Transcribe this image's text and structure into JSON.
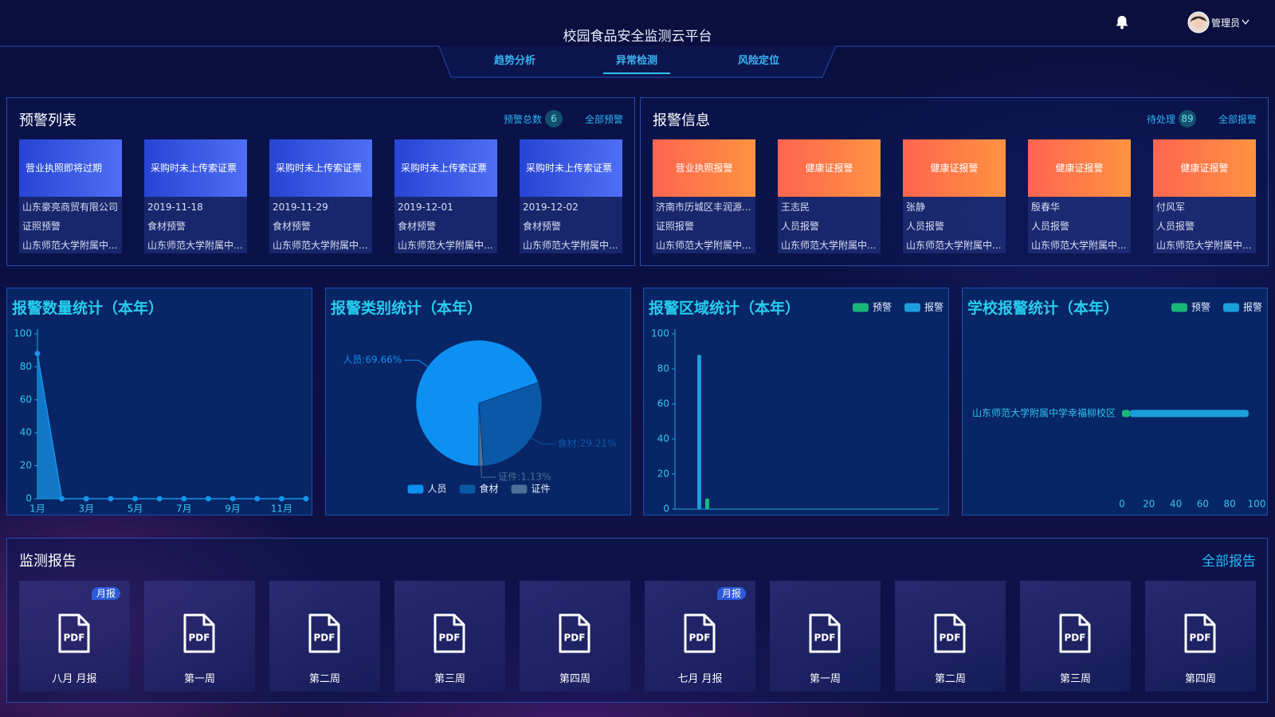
{
  "header": {
    "title": "校园食品安全监测云平台",
    "tabs": [
      "趋势分析",
      "异常检测",
      "风险定位"
    ],
    "active_tab": 1,
    "user": "管理员"
  },
  "warning_list": {
    "title": "预警列表",
    "total_label": "预警总数",
    "total": 6,
    "link": "全部预警",
    "cards": [
      {
        "head": "营业执照即将过期",
        "lines": [
          "山东豪亮商贸有限公司",
          "证照预警",
          "山东师范大学附属中..."
        ]
      },
      {
        "head": "采购时未上传索证票",
        "lines": [
          "2019-11-18",
          "食材预警",
          "山东师范大学附属中..."
        ]
      },
      {
        "head": "采购时未上传索证票",
        "lines": [
          "2019-11-29",
          "食材预警",
          "山东师范大学附属中..."
        ]
      },
      {
        "head": "采购时未上传索证票",
        "lines": [
          "2019-12-01",
          "食材预警",
          "山东师范大学附属中..."
        ]
      },
      {
        "head": "采购时未上传索证票",
        "lines": [
          "2019-12-02",
          "食材预警",
          "山东师范大学附属中..."
        ]
      }
    ]
  },
  "alarm_info": {
    "title": "报警信息",
    "pending_label": "待处理",
    "pending": 89,
    "link": "全部报警",
    "cards": [
      {
        "head": "营业执照报警",
        "lines": [
          "济南市历城区丰润源...",
          "证照报警",
          "山东师范大学附属中..."
        ]
      },
      {
        "head": "健康证报警",
        "lines": [
          "王志民",
          "人员报警",
          "山东师范大学附属中..."
        ]
      },
      {
        "head": "健康证报警",
        "lines": [
          "张静",
          "人员报警",
          "山东师范大学附属中..."
        ]
      },
      {
        "head": "健康证报警",
        "lines": [
          "殷春华",
          "人员报警",
          "山东师范大学附属中..."
        ]
      },
      {
        "head": "健康证报警",
        "lines": [
          "付风军",
          "人员报警",
          "山东师范大学附属中..."
        ]
      }
    ]
  },
  "chart_data": [
    {
      "type": "line",
      "title": "报警数量统计（本年）",
      "categories": [
        "1月",
        null,
        "3月",
        null,
        "5月",
        null,
        "7月",
        null,
        "9月",
        null,
        "11月",
        null
      ],
      "values": [
        88,
        0,
        0,
        0,
        0,
        0,
        0,
        0,
        0,
        0,
        0,
        0
      ],
      "color": "#1593e8",
      "ylim": [
        0,
        100
      ],
      "yticks": [
        0,
        20,
        40,
        60,
        80,
        100
      ],
      "area": true
    },
    {
      "type": "pie",
      "title": "报警类别统计（本年）",
      "categories": [
        "人员",
        "食材",
        "证件"
      ],
      "values": [
        69.66,
        29.21,
        1.13
      ],
      "value_labels": [
        "人员:69.66%",
        "食材:29.21%",
        "证件:1.13%"
      ],
      "colors": [
        "#0e8ff2",
        "#0a58a6",
        "#4e6f98"
      ],
      "legend": "bottom"
    },
    {
      "type": "bar",
      "title": "报警区域统计（本年）",
      "categories": [
        null
      ],
      "series": [
        {
          "name": "预警",
          "color": "#18b87a",
          "values": [
            6
          ]
        },
        {
          "name": "报警",
          "color": "#1b9fdc",
          "values": [
            88
          ]
        }
      ],
      "ylim": [
        0,
        100
      ],
      "yticks": [
        0,
        20,
        40,
        60,
        80,
        100
      ],
      "legend": "top-right"
    },
    {
      "type": "bar",
      "title": "学校报警统计（本年）",
      "horizontal": true,
      "stacked": true,
      "categories": [
        "山东师范大学附属中学幸福柳校区"
      ],
      "series": [
        {
          "name": "预警",
          "color": "#18b87a",
          "values": [
            6
          ]
        },
        {
          "name": "报警",
          "color": "#1b9fdc",
          "values": [
            88
          ]
        }
      ],
      "xlim": [
        0,
        100
      ],
      "xticks": [
        0,
        20,
        40,
        60,
        80,
        100
      ],
      "legend": "top-right"
    }
  ],
  "reports": {
    "title": "监测报告",
    "link": "全部报告",
    "icon_label": "PDF",
    "items": [
      {
        "name": "八月 月报",
        "badge": "月报"
      },
      {
        "name": "第一周"
      },
      {
        "name": "第二周"
      },
      {
        "name": "第三周"
      },
      {
        "name": "第四周"
      },
      {
        "name": "七月 月报",
        "badge": "月报"
      },
      {
        "name": "第一周"
      },
      {
        "name": "第二周"
      },
      {
        "name": "第三周"
      },
      {
        "name": "第四周"
      }
    ]
  }
}
